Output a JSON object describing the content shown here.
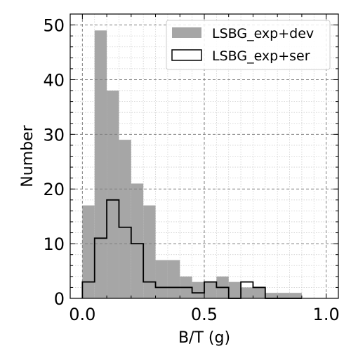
{
  "chart_data": {
    "type": "histogram",
    "xlabel": "B/T (g)",
    "ylabel": "Number",
    "xlim": [
      -0.05,
      1.05
    ],
    "ylim": [
      0,
      52
    ],
    "grid": true,
    "legend_position": "top-right",
    "x_ticks": [
      {
        "value": 0.0,
        "label": "0.0"
      },
      {
        "value": 0.5,
        "label": "0.5"
      },
      {
        "value": 1.0,
        "label": "1.0"
      }
    ],
    "y_ticks": [
      {
        "value": 0,
        "label": "0"
      },
      {
        "value": 10,
        "label": "10"
      },
      {
        "value": 20,
        "label": "20"
      },
      {
        "value": 30,
        "label": "30"
      },
      {
        "value": 40,
        "label": "40"
      },
      {
        "value": 50,
        "label": "50"
      }
    ],
    "bin_edges": [
      0.0,
      0.05,
      0.1,
      0.15,
      0.2,
      0.25,
      0.3,
      0.35,
      0.4,
      0.45,
      0.5,
      0.55,
      0.6,
      0.65,
      0.7,
      0.75,
      0.8,
      0.85,
      0.9
    ],
    "series": [
      {
        "name": "LSBG_exp+dev",
        "style": "filled",
        "color": "#a6a6a6",
        "values": [
          17,
          49,
          38,
          29,
          21,
          17,
          7,
          7,
          4,
          3,
          3,
          4,
          3,
          2,
          2,
          1,
          1,
          1
        ]
      },
      {
        "name": "LSBG_exp+ser",
        "style": "step",
        "color": "#000000",
        "values": [
          3,
          11,
          18,
          13,
          10,
          3,
          2,
          2,
          2,
          1,
          3,
          2,
          0,
          3,
          2,
          0,
          0,
          0
        ]
      }
    ]
  }
}
